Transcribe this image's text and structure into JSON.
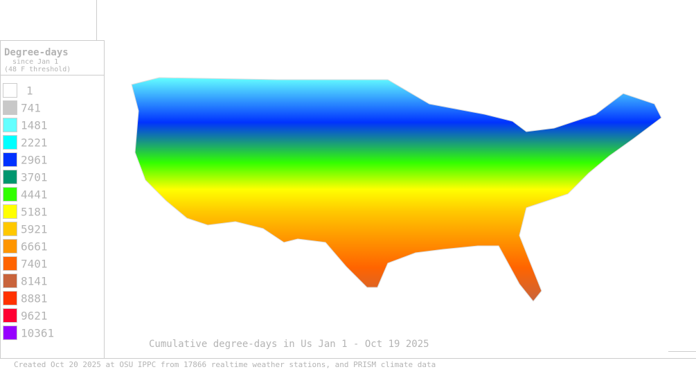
{
  "legend": {
    "title": "Degree-days",
    "subtitle": "since Jan 1",
    "threshold": "(48 F threshold)",
    "items": [
      {
        "label": "1",
        "color": "#ffffff"
      },
      {
        "label": "741",
        "color": "#c8c8c8"
      },
      {
        "label": "1481",
        "color": "#64ffff"
      },
      {
        "label": "2221",
        "color": "#00ffff"
      },
      {
        "label": "2961",
        "color": "#0032ff"
      },
      {
        "label": "3701",
        "color": "#00966e"
      },
      {
        "label": "4441",
        "color": "#32ff00"
      },
      {
        "label": "5181",
        "color": "#ffff00"
      },
      {
        "label": "5921",
        "color": "#ffc800"
      },
      {
        "label": "6661",
        "color": "#ff9600"
      },
      {
        "label": "7401",
        "color": "#ff6400"
      },
      {
        "label": "8141",
        "color": "#c8643c"
      },
      {
        "label": "8881",
        "color": "#ff3200"
      },
      {
        "label": "9621",
        "color": "#ff0032"
      },
      {
        "label": "10361",
        "color": "#9600ff"
      }
    ]
  },
  "map": {
    "title": "Cumulative degree-days in Us  Jan 1 - Oct 19 2025"
  },
  "footer": "Created Oct 20 2025 at OSU IPPC from 17866 realtime weather stations, and PRISM climate data"
}
